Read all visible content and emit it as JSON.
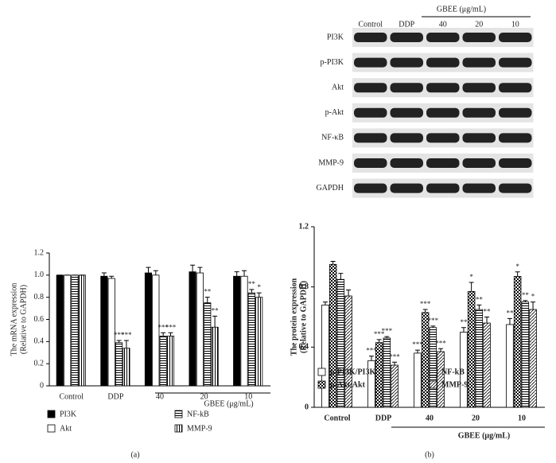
{
  "chart_data": [
    {
      "type": "bar",
      "ylabel": [
        "The mRNA expression",
        "(Relative to GAPDH)"
      ],
      "categories": [
        "Control",
        "DDP",
        "40",
        "20",
        "10"
      ],
      "group_label": "GBEE (μg/mL)",
      "panel": "(a)",
      "ylim": [
        0,
        1.2
      ],
      "yticks": [
        0,
        0.2,
        0.4,
        0.6,
        0.8,
        {
          "value": 1,
          "label": "1.0"
        },
        1.2
      ],
      "series": [
        {
          "name": "PI3K",
          "color": "#000000",
          "pattern": "solid",
          "values": [
            1.0,
            0.99,
            1.02,
            1.03,
            0.99
          ],
          "errors": [
            0,
            0.03,
            0.05,
            0.06,
            0.04
          ],
          "annotations": [
            null,
            null,
            null,
            null,
            null
          ]
        },
        {
          "name": "Akt",
          "color": "#ffffff",
          "pattern": "solid",
          "values": [
            1.0,
            0.97,
            1.0,
            1.02,
            0.99
          ],
          "errors": [
            0,
            0.02,
            0.04,
            0.05,
            0.05
          ],
          "annotations": [
            null,
            null,
            null,
            null,
            null
          ]
        },
        {
          "name": "NF-kB",
          "color": "#000000",
          "pattern": "hstripe",
          "values": [
            1.0,
            0.39,
            0.45,
            0.75,
            0.84
          ],
          "errors": [
            0,
            0.02,
            0.03,
            0.05,
            0.03
          ],
          "annotations": [
            null,
            "***",
            "***",
            "**",
            "**"
          ]
        },
        {
          "name": "MMP-9",
          "color": "#000000",
          "pattern": "vstripe",
          "values": [
            1.0,
            0.34,
            0.45,
            0.53,
            0.8
          ],
          "errors": [
            0,
            0.07,
            0.03,
            0.1,
            0.04
          ],
          "annotations": [
            null,
            "***",
            "***",
            "**",
            "*"
          ]
        }
      ]
    },
    {
      "type": "bar",
      "ylabel": [
        "The protein expression",
        "(Relative to GAPDH)"
      ],
      "categories": [
        "Control",
        "DDP",
        "40",
        "20",
        "10"
      ],
      "group_label": "GBEE (μg/mL)",
      "panel": "(b)",
      "ylim": [
        0,
        1.2
      ],
      "yticks": [
        0,
        0.4,
        0.8,
        1.2
      ],
      "series": [
        {
          "name": "p-PI3K/PI3K",
          "color": "#ffffff",
          "pattern": "solid",
          "values": [
            0.68,
            0.31,
            0.36,
            0.5,
            0.55
          ],
          "errors": [
            0.02,
            0.03,
            0.02,
            0.03,
            0.04
          ],
          "annotations": [
            null,
            "***",
            "***",
            "**",
            "**"
          ]
        },
        {
          "name": "p-Akt/Akt",
          "color": "#000000",
          "pattern": "check",
          "values": [
            0.95,
            0.43,
            0.63,
            0.77,
            0.87
          ],
          "errors": [
            0.02,
            0.02,
            0.02,
            0.06,
            0.03
          ],
          "annotations": [
            null,
            "***",
            "***",
            "*",
            "*"
          ]
        },
        {
          "name": "NF-kB",
          "color": "#000000",
          "pattern": "hstripe",
          "values": [
            0.85,
            0.46,
            0.53,
            0.65,
            0.7
          ],
          "errors": [
            0.04,
            0.01,
            0.01,
            0.03,
            0.01
          ],
          "annotations": [
            null,
            "***",
            "***",
            "**",
            "**"
          ]
        },
        {
          "name": "MMP-9",
          "color": "#000000",
          "pattern": "diag",
          "values": [
            0.74,
            0.28,
            0.37,
            0.56,
            0.65
          ],
          "errors": [
            0.04,
            0.02,
            0.02,
            0.04,
            0.05
          ],
          "annotations": [
            null,
            "***",
            "***",
            "**",
            "*"
          ]
        }
      ]
    }
  ],
  "blot": {
    "columns": [
      "Control",
      "DDP",
      "40",
      "20",
      "10"
    ],
    "group": "GBEE (μg/mL)",
    "rows": [
      "PI3K",
      "p-PI3K",
      "Akt",
      "p-Akt",
      "NF-κB",
      "MMP-9",
      "GAPDH"
    ]
  }
}
